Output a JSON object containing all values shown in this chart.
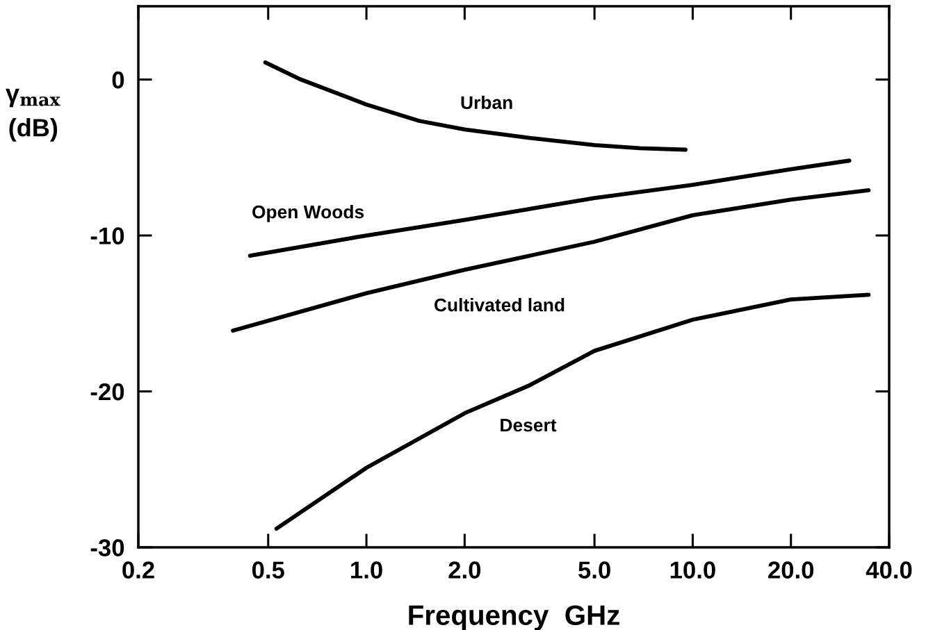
{
  "chart_data": {
    "type": "line",
    "xlabel": "Frequency  GHz",
    "ylabel": "γ$_{max}$\n(dB)",
    "log": "x",
    "grid": false,
    "marker": "none",
    "line_style": "solid",
    "xlim": [
      0.2,
      40
    ],
    "xticks": [
      0.2,
      {
        "value": 0.5,
        "label": "0.5"
      },
      {
        "value": 1,
        "label": "1.0"
      },
      {
        "value": 2,
        "label": "2.0"
      },
      {
        "value": 5,
        "label": "5.0"
      },
      {
        "value": 10,
        "label": "10.0"
      },
      {
        "value": 20,
        "label": "20.0"
      },
      {
        "value": 40,
        "label": "40.0"
      }
    ],
    "ylim": [
      -30,
      4.7
    ],
    "yticks": [
      0,
      -10,
      -20,
      -30
    ],
    "series": [
      {
        "name": "Urban",
        "color": "#000000",
        "x": [
          0.49,
          0.63,
          1.0,
          1.45,
          2.0,
          3.17,
          5.0,
          6.9,
          9.5
        ],
        "values": [
          1.1,
          0,
          -1.6,
          -2.65,
          -3.2,
          -3.75,
          -4.2,
          -4.4,
          -4.5
        ]
      },
      {
        "name": "Open Woods",
        "color": "#000000",
        "x": [
          0.44,
          1.0,
          2.0,
          5.0,
          10,
          20,
          30.2
        ],
        "values": [
          -11.3,
          -10.0,
          -9.0,
          -7.6,
          -6.75,
          -5.75,
          -5.2
        ]
      },
      {
        "name": "Cultivated land",
        "color": "#000000",
        "x": [
          0.39,
          1.0,
          2.0,
          5.0,
          10,
          20,
          34.6
        ],
        "values": [
          -16.1,
          -13.7,
          -12.2,
          -10.4,
          -8.7,
          -7.7,
          -7.1
        ]
      },
      {
        "name": "Desert",
        "color": "#000000",
        "x": [
          0.53,
          1.0,
          2.0,
          3.17,
          5.0,
          10,
          20,
          34.6
        ],
        "values": [
          -28.8,
          -24.9,
          -21.4,
          -19.6,
          -17.4,
          -15.4,
          -14.1,
          -13.8
        ]
      }
    ]
  }
}
